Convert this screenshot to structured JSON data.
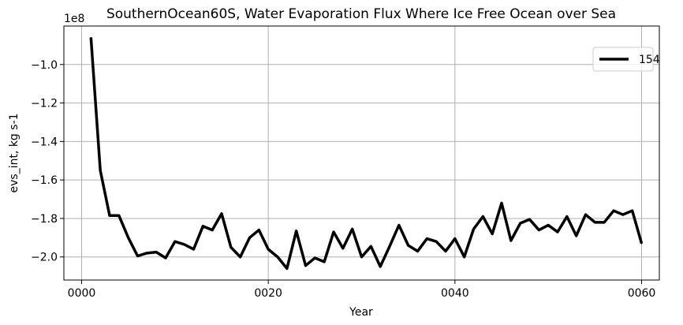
{
  "chart_data": {
    "type": "line",
    "title": "SouthernOcean60S, Water Evaporation Flux Where Ice Free Ocean over Sea",
    "xlabel": "Year",
    "ylabel": "evs_int, kg s-1",
    "y_scale_label": "1e8",
    "xlim": [
      -1.9,
      61.9
    ],
    "ylim": [
      -2.12,
      -0.8
    ],
    "x_ticks": [
      0,
      20,
      40,
      60
    ],
    "x_tick_labels": [
      "0000",
      "0020",
      "0040",
      "0060"
    ],
    "y_ticks": [
      -2.0,
      -1.8,
      -1.6,
      -1.4,
      -1.2,
      -1.0
    ],
    "y_tick_labels": [
      "−2.0",
      "−1.8",
      "−1.6",
      "−1.4",
      "−1.2",
      "−1.0"
    ],
    "grid": true,
    "legend_position": "top-right",
    "series": [
      {
        "name": "154",
        "color": "#000000",
        "x": [
          1,
          2,
          3,
          4,
          5,
          6,
          7,
          8,
          9,
          10,
          11,
          12,
          13,
          14,
          15,
          16,
          17,
          18,
          19,
          20,
          21,
          22,
          23,
          24,
          25,
          26,
          27,
          28,
          29,
          30,
          31,
          32,
          33,
          34,
          35,
          36,
          37,
          38,
          39,
          40,
          41,
          42,
          43,
          44,
          45,
          46,
          47,
          48,
          49,
          50,
          51,
          52,
          53,
          54,
          55,
          56,
          57,
          58,
          59,
          60
        ],
        "values": [
          -0.86,
          -1.55,
          -1.785,
          -1.785,
          -1.9,
          -1.995,
          -1.98,
          -1.975,
          -2.005,
          -1.92,
          -1.935,
          -1.96,
          -1.84,
          -1.86,
          -1.775,
          -1.95,
          -2.0,
          -1.9,
          -1.86,
          -1.96,
          -2.0,
          -2.06,
          -1.865,
          -2.045,
          -2.005,
          -2.025,
          -1.87,
          -1.955,
          -1.855,
          -2.0,
          -1.945,
          -2.05,
          -1.945,
          -1.835,
          -1.94,
          -1.97,
          -1.905,
          -1.92,
          -1.97,
          -1.905,
          -2.0,
          -1.855,
          -1.79,
          -1.88,
          -1.72,
          -1.915,
          -1.825,
          -1.805,
          -1.86,
          -1.835,
          -1.87,
          -1.79,
          -1.89,
          -1.78,
          -1.82,
          -1.82,
          -1.76,
          -1.78,
          -1.76,
          -1.93
        ]
      }
    ]
  }
}
